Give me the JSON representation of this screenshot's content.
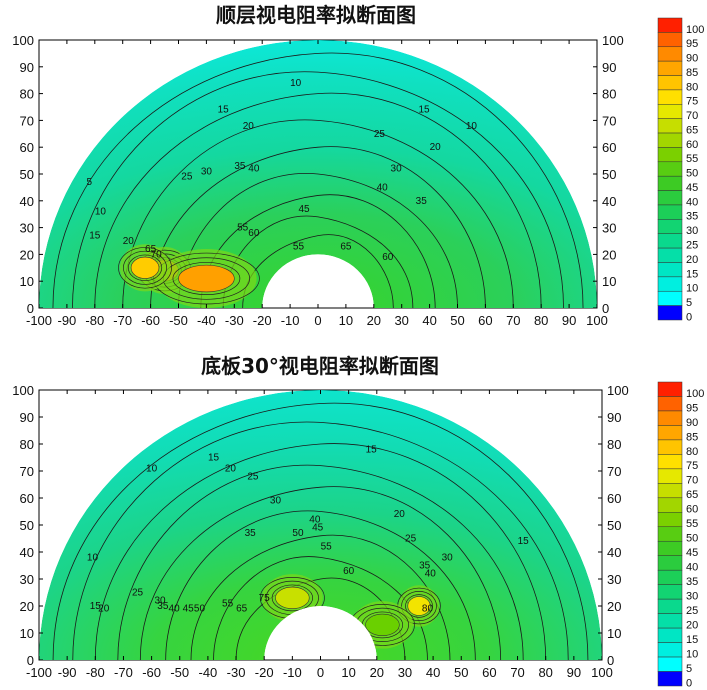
{
  "chart_data": [
    {
      "type": "heatmap",
      "subtype": "semicircular contour plot",
      "title": "顺层视电阻率拟断面图",
      "xlim": [
        -100,
        100
      ],
      "ylim": [
        0,
        100
      ],
      "x_ticks": [
        -100,
        -90,
        -80,
        -70,
        -60,
        -50,
        -40,
        -30,
        -20,
        -10,
        0,
        10,
        20,
        30,
        40,
        50,
        60,
        70,
        80,
        90,
        100
      ],
      "y_ticks": [
        0,
        10,
        20,
        30,
        40,
        50,
        60,
        70,
        80,
        90,
        100
      ],
      "outer_radius": 100,
      "inner_radius": 20,
      "colorbar_ticks": [
        0,
        5,
        10,
        15,
        20,
        25,
        30,
        35,
        40,
        45,
        50,
        55,
        60,
        65,
        70,
        75,
        80,
        85,
        90,
        95,
        100
      ],
      "contour_labels": [
        {
          "text": "10",
          "x": -8,
          "y": 84
        },
        {
          "text": "15",
          "x": -34,
          "y": 74
        },
        {
          "text": "20",
          "x": -25,
          "y": 68
        },
        {
          "text": "15",
          "x": 38,
          "y": 74
        },
        {
          "text": "10",
          "x": 55,
          "y": 68
        },
        {
          "text": "25",
          "x": 22,
          "y": 65
        },
        {
          "text": "20",
          "x": 42,
          "y": 60
        },
        {
          "text": "30",
          "x": 28,
          "y": 52
        },
        {
          "text": "35",
          "x": -28,
          "y": 53
        },
        {
          "text": "40",
          "x": -23,
          "y": 52
        },
        {
          "text": "30",
          "x": -40,
          "y": 51
        },
        {
          "text": "25",
          "x": -47,
          "y": 49
        },
        {
          "text": "40",
          "x": 23,
          "y": 45
        },
        {
          "text": "35",
          "x": 37,
          "y": 40
        },
        {
          "text": "5",
          "x": -82,
          "y": 47
        },
        {
          "text": "10",
          "x": -78,
          "y": 36
        },
        {
          "text": "15",
          "x": -80,
          "y": 27
        },
        {
          "text": "20",
          "x": -68,
          "y": 25
        },
        {
          "text": "45",
          "x": -5,
          "y": 37
        },
        {
          "text": "55",
          "x": -27,
          "y": 30
        },
        {
          "text": "60",
          "x": -23,
          "y": 28
        },
        {
          "text": "55",
          "x": -7,
          "y": 23
        },
        {
          "text": "65",
          "x": 10,
          "y": 23
        },
        {
          "text": "60",
          "x": 25,
          "y": 19
        },
        {
          "text": "65",
          "x": -60,
          "y": 22
        },
        {
          "text": "70",
          "x": -58,
          "y": 20
        }
      ],
      "anomalies": [
        {
          "x": -55,
          "y": 14,
          "value": 75,
          "color": "#ffb000"
        },
        {
          "x": -40,
          "y": 11,
          "value": 78,
          "color": "#ffa000"
        },
        {
          "x": -62,
          "y": 15,
          "value": 70,
          "color": "#ffcc00"
        }
      ]
    },
    {
      "type": "heatmap",
      "subtype": "semicircular contour plot",
      "title": "底板30°视电阻率拟断面图",
      "xlim": [
        -100,
        100
      ],
      "ylim": [
        0,
        100
      ],
      "x_ticks": [
        -100,
        -90,
        -80,
        -70,
        -60,
        -50,
        -40,
        -30,
        -20,
        -10,
        0,
        10,
        20,
        30,
        40,
        50,
        60,
        70,
        80,
        90,
        100
      ],
      "y_ticks": [
        0,
        10,
        20,
        30,
        40,
        50,
        60,
        70,
        80,
        90,
        100
      ],
      "outer_radius": 100,
      "inner_radius": 20,
      "colorbar_ticks": [
        0,
        5,
        10,
        15,
        20,
        25,
        30,
        35,
        40,
        45,
        50,
        55,
        60,
        65,
        70,
        75,
        80,
        85,
        90,
        95,
        100
      ],
      "contour_labels": [
        {
          "text": "10",
          "x": -60,
          "y": 71
        },
        {
          "text": "15",
          "x": -38,
          "y": 75
        },
        {
          "text": "20",
          "x": -32,
          "y": 71
        },
        {
          "text": "25",
          "x": -24,
          "y": 68
        },
        {
          "text": "15",
          "x": 18,
          "y": 78
        },
        {
          "text": "20",
          "x": 28,
          "y": 54
        },
        {
          "text": "30",
          "x": -16,
          "y": 59
        },
        {
          "text": "35",
          "x": -25,
          "y": 47
        },
        {
          "text": "40",
          "x": -2,
          "y": 52
        },
        {
          "text": "45",
          "x": -1,
          "y": 49
        },
        {
          "text": "50",
          "x": -8,
          "y": 47
        },
        {
          "text": "55",
          "x": 2,
          "y": 42
        },
        {
          "text": "25",
          "x": 32,
          "y": 45
        },
        {
          "text": "30",
          "x": 45,
          "y": 38
        },
        {
          "text": "35",
          "x": 37,
          "y": 35
        },
        {
          "text": "40",
          "x": 39,
          "y": 32
        },
        {
          "text": "60",
          "x": 10,
          "y": 33
        },
        {
          "text": "15",
          "x": 72,
          "y": 44
        },
        {
          "text": "10",
          "x": -81,
          "y": 38
        },
        {
          "text": "15",
          "x": -80,
          "y": 20
        },
        {
          "text": "20",
          "x": -77,
          "y": 19
        },
        {
          "text": "25",
          "x": -65,
          "y": 25
        },
        {
          "text": "30",
          "x": -57,
          "y": 22
        },
        {
          "text": "35",
          "x": -56,
          "y": 20
        },
        {
          "text": "40",
          "x": -52,
          "y": 19
        },
        {
          "text": "45",
          "x": -47,
          "y": 19
        },
        {
          "text": "50",
          "x": -43,
          "y": 19
        },
        {
          "text": "55",
          "x": -33,
          "y": 21
        },
        {
          "text": "65",
          "x": -28,
          "y": 19
        },
        {
          "text": "75",
          "x": -20,
          "y": 23
        },
        {
          "text": "80",
          "x": 38,
          "y": 19
        }
      ],
      "anomalies": [
        {
          "x": 35,
          "y": 20,
          "value": 72,
          "color": "#f2e400"
        },
        {
          "x": -10,
          "y": 23,
          "value": 70,
          "color": "#c8e000"
        },
        {
          "x": 22,
          "y": 13,
          "value": 50,
          "color": "#6ad000"
        }
      ]
    }
  ]
}
